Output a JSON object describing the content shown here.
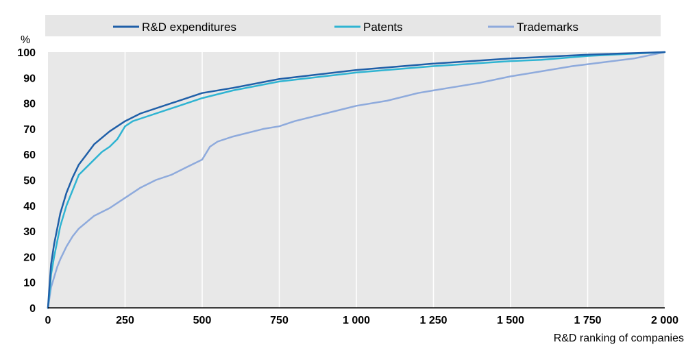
{
  "chart_data": {
    "type": "line",
    "title": "",
    "ylabel": "%",
    "xlabel": "R&D ranking of companies",
    "xlim": [
      0,
      2000
    ],
    "ylim": [
      0,
      100
    ],
    "x_ticks": [
      0,
      250,
      500,
      750,
      1000,
      1250,
      1500,
      1750,
      2000
    ],
    "x_tick_labels": [
      "0",
      "250",
      "500",
      "750",
      "1 000",
      "1 250",
      "1 500",
      "1 750",
      "2 000"
    ],
    "y_ticks": [
      0,
      10,
      20,
      30,
      40,
      50,
      60,
      70,
      80,
      90,
      100
    ],
    "y_tick_labels": [
      "0",
      "10",
      "20",
      "30",
      "40",
      "50",
      "60",
      "70",
      "80",
      "90",
      "100"
    ],
    "grid": "vertical",
    "legend_position": "top",
    "series": [
      {
        "name": "R&D expenditures",
        "color": "#1f5fa8",
        "x": [
          0,
          5,
          10,
          20,
          30,
          40,
          50,
          60,
          80,
          100,
          125,
          150,
          200,
          250,
          300,
          400,
          500,
          600,
          750,
          1000,
          1250,
          1500,
          1750,
          2000
        ],
        "y": [
          0,
          9,
          17,
          25,
          31,
          37,
          41,
          45,
          51,
          56,
          60,
          64,
          69,
          73,
          76,
          80,
          84,
          86,
          89.5,
          93,
          95.5,
          97.5,
          99,
          100
        ]
      },
      {
        "name": "Patents",
        "color": "#2fb4d2",
        "x": [
          0,
          5,
          10,
          20,
          30,
          40,
          50,
          60,
          80,
          100,
          125,
          150,
          175,
          200,
          225,
          250,
          275,
          300,
          400,
          500,
          600,
          750,
          1000,
          1250,
          1500,
          1600,
          1750,
          2000
        ],
        "y": [
          0,
          6,
          13,
          20,
          26,
          32,
          36,
          40,
          46,
          52,
          55,
          58,
          61,
          63,
          66,
          71,
          73,
          74,
          78,
          82,
          85,
          88.5,
          92,
          94.5,
          96.5,
          97,
          98.5,
          100
        ]
      },
      {
        "name": "Trademarks",
        "color": "#8eaadc",
        "x": [
          0,
          10,
          20,
          30,
          40,
          60,
          80,
          100,
          150,
          200,
          250,
          300,
          350,
          400,
          450,
          500,
          515,
          525,
          550,
          600,
          700,
          750,
          800,
          900,
          1000,
          1100,
          1200,
          1250,
          1300,
          1400,
          1500,
          1600,
          1700,
          1800,
          1900,
          2000
        ],
        "y": [
          0,
          8,
          12,
          16,
          19,
          24,
          28,
          31,
          36,
          39,
          43,
          47,
          50,
          52,
          55,
          58,
          61,
          63,
          65,
          67,
          70,
          71,
          73,
          76,
          79,
          81,
          84,
          85,
          86,
          88,
          90.5,
          92.5,
          94.5,
          96,
          97.5,
          100
        ]
      }
    ]
  }
}
